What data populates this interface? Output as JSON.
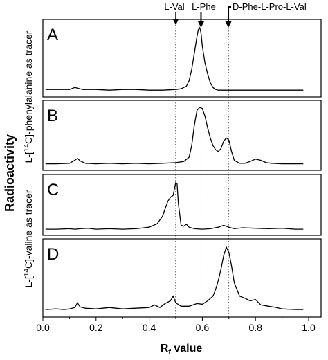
{
  "chart_data": {
    "type": "line",
    "x_axis": {
      "label_main": "R",
      "label_sub": "f",
      "label_rest": " value",
      "range": [
        0.0,
        1.0
      ],
      "ticks": [
        "0.0",
        "0.2",
        "0.4",
        "0.6",
        "0.8",
        "1.0"
      ],
      "tick_values": [
        0.0,
        0.2,
        0.4,
        0.6,
        0.8,
        1.0
      ]
    },
    "y_axis_label": "Radioactivity",
    "group_labels": [
      {
        "pre": "L-[",
        "sup": "14",
        "post": "C]-phenylalanine as tracer",
        "panels": [
          "A",
          "B"
        ]
      },
      {
        "pre": "L-[",
        "sup": "14",
        "post": "C]-valine as tracer",
        "panels": [
          "C",
          "D"
        ]
      }
    ],
    "markers": [
      {
        "label": "L-Val",
        "x": 0.5
      },
      {
        "label": "L-Phe",
        "x": 0.595
      },
      {
        "label": "D-Phe-L-Pro-L-Val",
        "x": 0.698
      }
    ],
    "panels": [
      {
        "label": "A",
        "series": [
          {
            "x": [
              0.01,
              0.05,
              0.1,
              0.12,
              0.15,
              0.2,
              0.25,
              0.3,
              0.35,
              0.4,
              0.45,
              0.5,
              0.52,
              0.54,
              0.55,
              0.56,
              0.57,
              0.58,
              0.585,
              0.59,
              0.595,
              0.6,
              0.61,
              0.62,
              0.63,
              0.64,
              0.65,
              0.66,
              0.68,
              0.7,
              0.75,
              0.8,
              0.85,
              0.9,
              0.95,
              0.98
            ],
            "y": [
              0.05,
              0.05,
              0.05,
              0.08,
              0.05,
              0.05,
              0.04,
              0.05,
              0.05,
              0.04,
              0.04,
              0.05,
              0.06,
              0.1,
              0.18,
              0.35,
              0.6,
              0.85,
              0.95,
              0.98,
              0.9,
              0.7,
              0.45,
              0.28,
              0.15,
              0.08,
              0.05,
              0.04,
              0.04,
              0.04,
              0.04,
              0.04,
              0.04,
              0.04,
              0.04,
              0.04
            ]
          }
        ]
      },
      {
        "label": "B",
        "series": [
          {
            "x": [
              0.01,
              0.05,
              0.1,
              0.12,
              0.13,
              0.14,
              0.16,
              0.2,
              0.25,
              0.3,
              0.35,
              0.4,
              0.45,
              0.5,
              0.53,
              0.55,
              0.56,
              0.57,
              0.58,
              0.59,
              0.6,
              0.61,
              0.62,
              0.63,
              0.64,
              0.65,
              0.66,
              0.67,
              0.68,
              0.69,
              0.7,
              0.71,
              0.72,
              0.74,
              0.76,
              0.78,
              0.8,
              0.82,
              0.84,
              0.86,
              0.9,
              0.95,
              0.98
            ],
            "y": [
              0.04,
              0.04,
              0.05,
              0.1,
              0.13,
              0.09,
              0.05,
              0.04,
              0.05,
              0.04,
              0.05,
              0.04,
              0.05,
              0.06,
              0.08,
              0.15,
              0.35,
              0.7,
              0.95,
              1.0,
              0.98,
              0.85,
              0.65,
              0.48,
              0.35,
              0.28,
              0.25,
              0.3,
              0.42,
              0.48,
              0.44,
              0.25,
              0.1,
              0.05,
              0.05,
              0.08,
              0.12,
              0.1,
              0.06,
              0.05,
              0.04,
              0.04,
              0.04
            ]
          }
        ]
      },
      {
        "label": "C",
        "series": [
          {
            "x": [
              0.01,
              0.05,
              0.1,
              0.12,
              0.14,
              0.17,
              0.2,
              0.25,
              0.3,
              0.35,
              0.4,
              0.43,
              0.45,
              0.46,
              0.47,
              0.48,
              0.49,
              0.5,
              0.505,
              0.51,
              0.52,
              0.53,
              0.54,
              0.55,
              0.57,
              0.6,
              0.63,
              0.66,
              0.68,
              0.7,
              0.72,
              0.75,
              0.8,
              0.85,
              0.9,
              0.95,
              0.98
            ],
            "y": [
              0.04,
              0.04,
              0.05,
              0.04,
              0.05,
              0.06,
              0.04,
              0.05,
              0.04,
              0.05,
              0.08,
              0.15,
              0.3,
              0.45,
              0.6,
              0.68,
              0.72,
              0.98,
              0.95,
              0.55,
              0.12,
              0.1,
              0.14,
              0.08,
              0.05,
              0.04,
              0.05,
              0.08,
              0.12,
              0.08,
              0.05,
              0.07,
              0.06,
              0.05,
              0.06,
              0.04,
              0.04
            ]
          }
        ]
      },
      {
        "label": "D",
        "series": [
          {
            "x": [
              0.01,
              0.05,
              0.08,
              0.1,
              0.12,
              0.13,
              0.14,
              0.16,
              0.2,
              0.25,
              0.3,
              0.35,
              0.4,
              0.42,
              0.44,
              0.46,
              0.48,
              0.49,
              0.5,
              0.52,
              0.55,
              0.58,
              0.6,
              0.62,
              0.64,
              0.65,
              0.66,
              0.67,
              0.68,
              0.69,
              0.7,
              0.71,
              0.72,
              0.74,
              0.76,
              0.78,
              0.8,
              0.82,
              0.85,
              0.88,
              0.9,
              0.95,
              0.98
            ],
            "y": [
              0.05,
              0.06,
              0.05,
              0.06,
              0.08,
              0.15,
              0.09,
              0.07,
              0.06,
              0.08,
              0.06,
              0.07,
              0.08,
              0.12,
              0.08,
              0.14,
              0.18,
              0.25,
              0.15,
              0.1,
              0.1,
              0.14,
              0.13,
              0.18,
              0.25,
              0.35,
              0.48,
              0.65,
              0.85,
              0.98,
              0.9,
              0.7,
              0.45,
              0.25,
              0.22,
              0.18,
              0.2,
              0.12,
              0.1,
              0.08,
              0.06,
              0.05,
              0.05
            ]
          }
        ]
      }
    ]
  }
}
